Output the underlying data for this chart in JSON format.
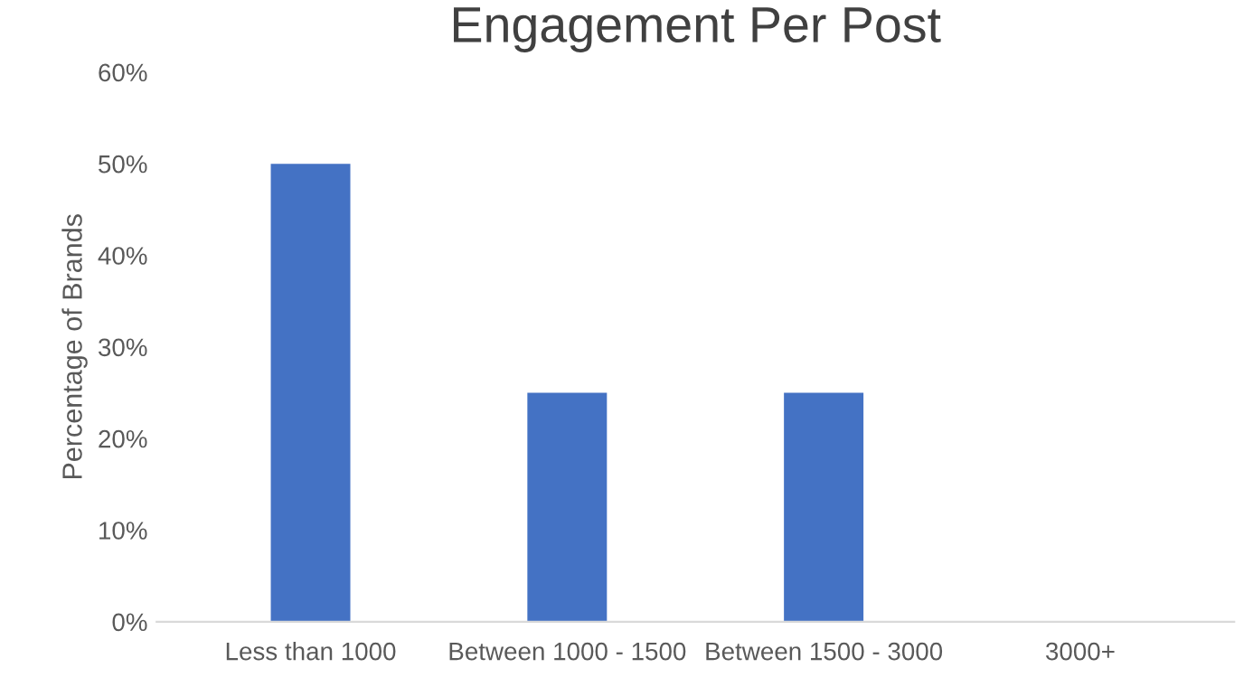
{
  "chart_data": {
    "type": "bar",
    "title": "Engagement Per Post",
    "ylabel": "Percentage of Brands",
    "categories": [
      "Less than 1000",
      "Between 1000 - 1500",
      "Between 1500 - 3000",
      "3000+"
    ],
    "values": [
      50,
      25,
      25,
      0
    ],
    "color": "#4472c4",
    "ylim": [
      0,
      60
    ],
    "yticks": [
      {
        "value": 0,
        "label": "0%"
      },
      {
        "value": 10,
        "label": "10%"
      },
      {
        "value": 20,
        "label": "20%"
      },
      {
        "value": 30,
        "label": "30%"
      },
      {
        "value": 40,
        "label": "40%"
      },
      {
        "value": 50,
        "label": "50%"
      },
      {
        "value": 60,
        "label": "60%"
      }
    ],
    "grid": false,
    "legend": false
  }
}
